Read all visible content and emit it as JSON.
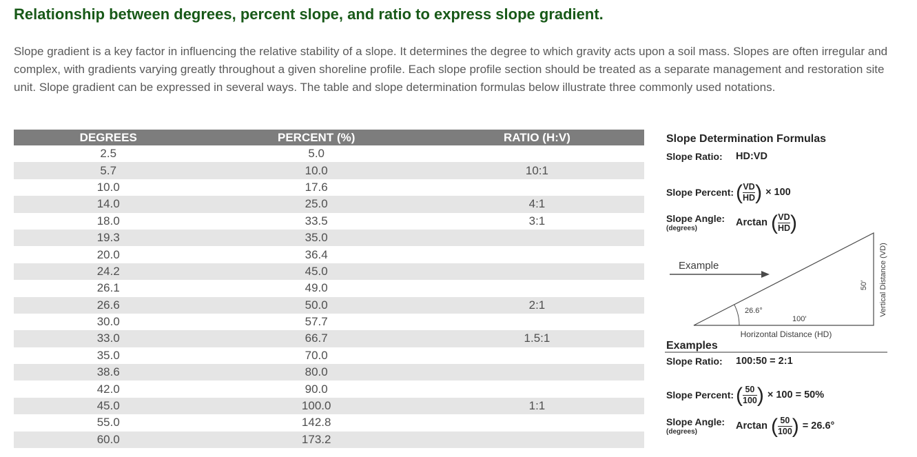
{
  "page": {
    "title": "Relationship between degrees, percent slope, and ratio to express slope gradient.",
    "intro": "Slope gradient is a key factor in influencing the relative stability of a slope. It determines the degree to which gravity acts upon a soil mass. Slopes are often irregular and complex, with gradients varying greatly throughout a given shoreline profile. Each slope profile section should be treated as a separate management and restoration site unit. Slope gradient can be expressed in several ways. The table and slope determination formulas below illustrate three commonly used notations."
  },
  "colors": {
    "heading_green": "#185918",
    "table_header_bg": "#7d7d7d",
    "row_stripe_bg": "#e5e5e5",
    "body_text_gray": "#595959"
  },
  "table": {
    "headers": [
      "DEGREES",
      "PERCENT (%)",
      "RATIO (H:V)"
    ],
    "rows": [
      [
        "2.5",
        "5.0",
        ""
      ],
      [
        "5.7",
        "10.0",
        "10:1"
      ],
      [
        "10.0",
        "17.6",
        ""
      ],
      [
        "14.0",
        "25.0",
        "4:1"
      ],
      [
        "18.0",
        "33.5",
        "3:1"
      ],
      [
        "19.3",
        "35.0",
        ""
      ],
      [
        "20.0",
        "36.4",
        ""
      ],
      [
        "24.2",
        "45.0",
        ""
      ],
      [
        "26.1",
        "49.0",
        ""
      ],
      [
        "26.6",
        "50.0",
        "2:1"
      ],
      [
        "30.0",
        "57.7",
        ""
      ],
      [
        "33.0",
        "66.7",
        "1.5:1"
      ],
      [
        "35.0",
        "70.0",
        ""
      ],
      [
        "38.6",
        "80.0",
        ""
      ],
      [
        "42.0",
        "90.0",
        ""
      ],
      [
        "45.0",
        "100.0",
        "1:1"
      ],
      [
        "55.0",
        "142.8",
        ""
      ],
      [
        "60.0",
        "173.2",
        ""
      ]
    ]
  },
  "formulas": {
    "heading": "Slope Determination Formulas",
    "ratio": {
      "label": "Slope Ratio:",
      "value": "HD:VD"
    },
    "percent": {
      "label": "Slope Percent:",
      "num": "VD",
      "den": "HD",
      "suffix": "× 100"
    },
    "angle": {
      "label": "Slope Angle:",
      "sublabel": "(degrees)",
      "prefix": "Arctan",
      "num": "VD",
      "den": "HD"
    }
  },
  "diagram": {
    "example_label": "Example",
    "angle_label": "26.6°",
    "base_label": "100′",
    "height_label": "50′",
    "vertical_axis_label": "Vertical Distance (VD)",
    "horizontal_axis_label": "Horizontal Distance (HD)"
  },
  "examples": {
    "heading": "Examples",
    "ratio": {
      "label": "Slope Ratio:",
      "value": "100:50 = 2:1"
    },
    "percent": {
      "label": "Slope Percent:",
      "num": "50",
      "den": "100",
      "suffix": "× 100 = 50%"
    },
    "angle": {
      "label": "Slope Angle:",
      "sublabel": "(degrees)",
      "prefix": "Arctan",
      "num": "50",
      "den": "100",
      "suffix": "= 26.6°"
    }
  }
}
